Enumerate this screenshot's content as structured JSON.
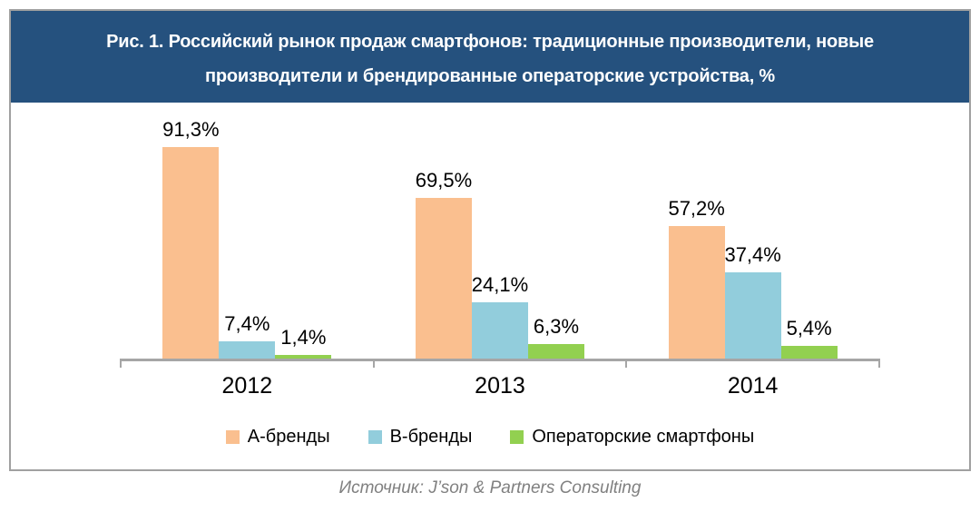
{
  "header": {
    "title_line1": "Рис. 1. Российский рынок продаж смартфонов: традиционные производители, новые",
    "title_line2": "производители и брендированные операторские устройства, %",
    "bg_color": "#25517e",
    "text_color": "#ffffff"
  },
  "chart_data": {
    "type": "bar",
    "title": "Рис. 1. Российский рынок продаж смартфонов: традиционные производители, новые производители и брендированные операторские устройства, %",
    "categories": [
      "2012",
      "2013",
      "2014"
    ],
    "series": [
      {
        "name": "А-бренды",
        "color": "#fabf8f",
        "values": [
          91.3,
          69.5,
          57.2
        ],
        "labels": [
          "91,3%",
          "69,5%",
          "57,2%"
        ]
      },
      {
        "name": "В-бренды",
        "color": "#92cddc",
        "values": [
          7.4,
          24.1,
          37.4
        ],
        "labels": [
          "7,4%",
          "24,1%",
          "37,4%"
        ]
      },
      {
        "name": "Операторские смартфоны",
        "color": "#92d050",
        "values": [
          1.4,
          6.3,
          5.4
        ],
        "labels": [
          "1,4%",
          "6,3%",
          "5,4%"
        ]
      }
    ],
    "unit": "%",
    "ylim": [
      0,
      100
    ],
    "grid": false,
    "value_labels_shown": true,
    "legend_position": "bottom",
    "axis_color": "#a6a6a6"
  },
  "source": {
    "text": "Источник: J’son & Partners Consulting"
  }
}
